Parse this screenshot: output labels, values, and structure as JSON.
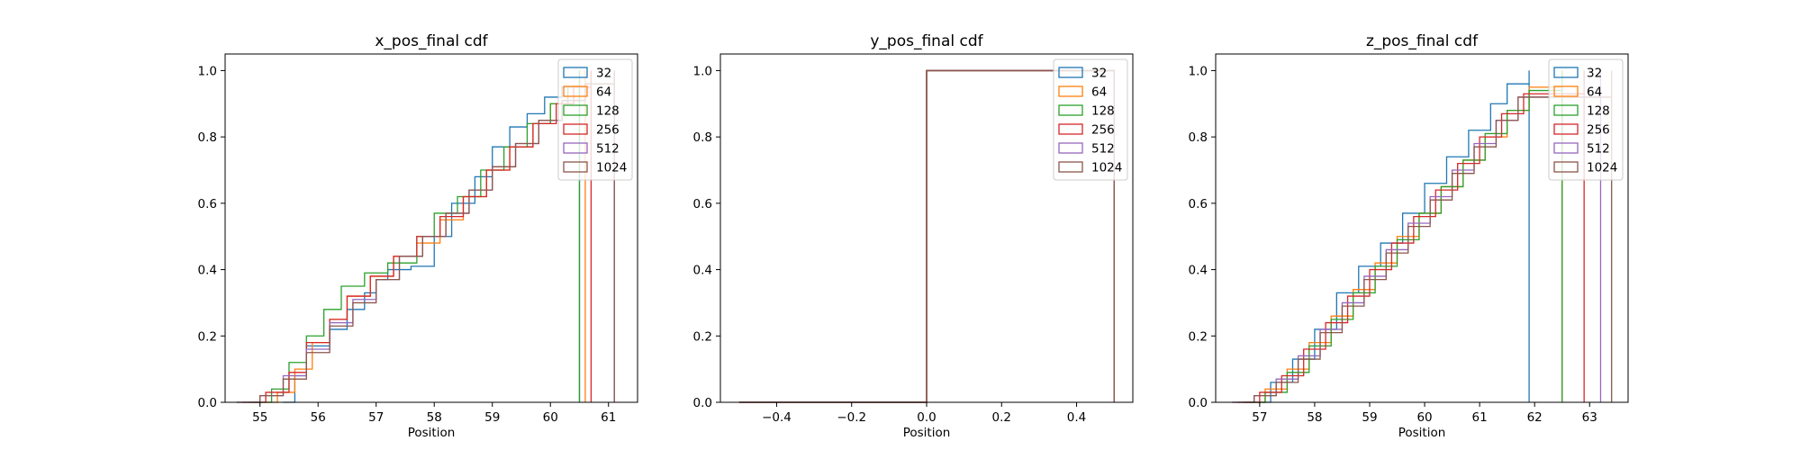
{
  "chart_data": [
    {
      "type": "line",
      "title": "x_pos_final cdf",
      "xlabel": "Position",
      "ylabel": "",
      "xlim": [
        54.4,
        61.5
      ],
      "ylim": [
        0,
        1.05
      ],
      "xticks": [
        55,
        56,
        57,
        58,
        59,
        60,
        61
      ],
      "xtick_labels": [
        "55",
        "56",
        "57",
        "58",
        "59",
        "60",
        "61"
      ],
      "yticks": [
        0.0,
        0.2,
        0.4,
        0.6,
        0.8,
        1.0
      ],
      "ytick_labels": [
        "0.0",
        "0.2",
        "0.4",
        "0.6",
        "0.8",
        "1.0"
      ],
      "legend_position": "top-right",
      "series": [
        {
          "name": "32",
          "color": "#1f77b4",
          "x": [
            55.4,
            55.6,
            55.8,
            56.2,
            56.5,
            56.8,
            57.0,
            57.2,
            57.6,
            58.0,
            58.3,
            58.7,
            59.0,
            59.3,
            59.6,
            59.9,
            60.2,
            60.5
          ],
          "y": [
            0.0,
            0.08,
            0.17,
            0.22,
            0.28,
            0.33,
            0.37,
            0.4,
            0.41,
            0.5,
            0.6,
            0.68,
            0.77,
            0.83,
            0.87,
            0.92,
            0.95,
            1.0
          ]
        },
        {
          "name": "64",
          "color": "#ff7f0e",
          "x": [
            54.9,
            55.3,
            55.6,
            55.9,
            56.2,
            56.5,
            56.9,
            57.3,
            57.7,
            58.1,
            58.5,
            58.9,
            59.3,
            59.7,
            60.0,
            60.3,
            60.6
          ],
          "y": [
            0.0,
            0.03,
            0.1,
            0.18,
            0.25,
            0.32,
            0.38,
            0.44,
            0.48,
            0.55,
            0.62,
            0.7,
            0.77,
            0.84,
            0.9,
            0.95,
            1.0
          ]
        },
        {
          "name": "128",
          "color": "#2ca02c",
          "x": [
            54.8,
            55.2,
            55.5,
            55.8,
            56.1,
            56.4,
            56.8,
            57.2,
            57.7,
            58.0,
            58.4,
            58.8,
            59.2,
            59.6,
            60.0,
            60.3,
            60.5
          ],
          "y": [
            0.0,
            0.04,
            0.12,
            0.2,
            0.28,
            0.35,
            0.39,
            0.42,
            0.5,
            0.57,
            0.62,
            0.7,
            0.77,
            0.84,
            0.9,
            0.95,
            1.0
          ]
        },
        {
          "name": "256",
          "color": "#d62728",
          "x": [
            54.7,
            55.1,
            55.5,
            55.8,
            56.2,
            56.5,
            56.9,
            57.3,
            57.7,
            58.1,
            58.5,
            58.9,
            59.3,
            59.7,
            60.1,
            60.4,
            60.7
          ],
          "y": [
            0.0,
            0.03,
            0.09,
            0.18,
            0.25,
            0.32,
            0.38,
            0.44,
            0.5,
            0.56,
            0.62,
            0.7,
            0.77,
            0.84,
            0.9,
            0.95,
            1.0
          ]
        },
        {
          "name": "512",
          "color": "#9467bd",
          "x": [
            54.6,
            55.0,
            55.4,
            55.8,
            56.2,
            56.6,
            57.0,
            57.4,
            57.8,
            58.2,
            58.6,
            59.0,
            59.4,
            59.8,
            60.2,
            60.6,
            61.1
          ],
          "y": [
            0.0,
            0.02,
            0.08,
            0.16,
            0.24,
            0.31,
            0.37,
            0.44,
            0.5,
            0.57,
            0.64,
            0.71,
            0.78,
            0.85,
            0.91,
            0.96,
            1.0
          ]
        },
        {
          "name": "1024",
          "color": "#8c564b",
          "x": [
            54.6,
            55.0,
            55.4,
            55.8,
            56.2,
            56.6,
            57.0,
            57.4,
            57.8,
            58.2,
            58.6,
            59.0,
            59.4,
            59.8,
            60.2,
            60.6,
            61.1
          ],
          "y": [
            0.0,
            0.02,
            0.07,
            0.15,
            0.23,
            0.3,
            0.37,
            0.44,
            0.5,
            0.57,
            0.64,
            0.71,
            0.78,
            0.85,
            0.91,
            0.96,
            1.0
          ]
        }
      ]
    },
    {
      "type": "line",
      "title": "y_pos_final cdf",
      "xlabel": "Position",
      "ylabel": "",
      "xlim": [
        -0.55,
        0.55
      ],
      "ylim": [
        0,
        1.05
      ],
      "xticks": [
        -0.4,
        -0.2,
        0.0,
        0.2,
        0.4
      ],
      "xtick_labels": [
        "−0.4",
        "−0.2",
        "0.0",
        "0.2",
        "0.4"
      ],
      "yticks": [
        0.0,
        0.2,
        0.4,
        0.6,
        0.8,
        1.0
      ],
      "ytick_labels": [
        "0.0",
        "0.2",
        "0.4",
        "0.6",
        "0.8",
        "1.0"
      ],
      "legend_position": "top-right",
      "series": [
        {
          "name": "32",
          "color": "#1f77b4",
          "x": [
            -0.5,
            0.0,
            0.5
          ],
          "y": [
            0.0,
            1.0,
            1.0
          ]
        },
        {
          "name": "64",
          "color": "#ff7f0e",
          "x": [
            -0.5,
            0.0,
            0.5
          ],
          "y": [
            0.0,
            1.0,
            1.0
          ]
        },
        {
          "name": "128",
          "color": "#2ca02c",
          "x": [
            -0.5,
            0.0,
            0.5
          ],
          "y": [
            0.0,
            1.0,
            1.0
          ]
        },
        {
          "name": "256",
          "color": "#d62728",
          "x": [
            -0.5,
            0.0,
            0.5
          ],
          "y": [
            0.0,
            1.0,
            1.0
          ]
        },
        {
          "name": "512",
          "color": "#9467bd",
          "x": [
            -0.5,
            0.0,
            0.5
          ],
          "y": [
            0.0,
            1.0,
            1.0
          ]
        },
        {
          "name": "1024",
          "color": "#8c564b",
          "x": [
            -0.5,
            0.0,
            0.5
          ],
          "y": [
            0.0,
            1.0,
            1.0
          ]
        }
      ]
    },
    {
      "type": "line",
      "title": "z_pos_final cdf",
      "xlabel": "Position",
      "ylabel": "",
      "xlim": [
        56.2,
        63.7
      ],
      "ylim": [
        0,
        1.05
      ],
      "xticks": [
        57,
        58,
        59,
        60,
        61,
        62,
        63
      ],
      "xtick_labels": [
        "57",
        "58",
        "59",
        "60",
        "61",
        "62",
        "63"
      ],
      "yticks": [
        0.0,
        0.2,
        0.4,
        0.6,
        0.8,
        1.0
      ],
      "ytick_labels": [
        "0.0",
        "0.2",
        "0.4",
        "0.6",
        "0.8",
        "1.0"
      ],
      "legend_position": "top-right",
      "series": [
        {
          "name": "32",
          "color": "#1f77b4",
          "x": [
            56.8,
            57.2,
            57.6,
            58.0,
            58.4,
            58.8,
            59.2,
            59.6,
            60.0,
            60.4,
            60.8,
            61.2,
            61.5,
            61.9
          ],
          "y": [
            0.0,
            0.06,
            0.13,
            0.22,
            0.33,
            0.41,
            0.48,
            0.57,
            0.66,
            0.74,
            0.82,
            0.9,
            0.96,
            1.0
          ]
        },
        {
          "name": "64",
          "color": "#ff7f0e",
          "x": [
            56.7,
            57.1,
            57.5,
            57.9,
            58.3,
            58.7,
            59.1,
            59.5,
            59.9,
            60.3,
            60.7,
            61.1,
            61.5,
            61.9,
            62.5
          ],
          "y": [
            0.0,
            0.04,
            0.1,
            0.18,
            0.26,
            0.34,
            0.42,
            0.5,
            0.57,
            0.65,
            0.73,
            0.8,
            0.88,
            0.95,
            1.0
          ]
        },
        {
          "name": "128",
          "color": "#2ca02c",
          "x": [
            56.7,
            57.1,
            57.5,
            57.9,
            58.3,
            58.7,
            59.1,
            59.5,
            59.9,
            60.3,
            60.7,
            61.1,
            61.5,
            61.9,
            62.5
          ],
          "y": [
            0.0,
            0.03,
            0.09,
            0.17,
            0.25,
            0.33,
            0.41,
            0.49,
            0.57,
            0.65,
            0.73,
            0.81,
            0.88,
            0.94,
            1.0
          ]
        },
        {
          "name": "256",
          "color": "#d62728",
          "x": [
            56.6,
            57.0,
            57.4,
            57.8,
            58.2,
            58.6,
            59.0,
            59.4,
            59.8,
            60.2,
            60.6,
            61.0,
            61.4,
            61.8,
            62.9
          ],
          "y": [
            0.0,
            0.03,
            0.08,
            0.16,
            0.24,
            0.32,
            0.4,
            0.48,
            0.56,
            0.64,
            0.72,
            0.8,
            0.87,
            0.93,
            1.0
          ]
        },
        {
          "name": "512",
          "color": "#9467bd",
          "x": [
            56.5,
            56.9,
            57.3,
            57.7,
            58.1,
            58.5,
            58.9,
            59.3,
            59.7,
            60.1,
            60.5,
            60.9,
            61.3,
            61.7,
            63.2
          ],
          "y": [
            0.0,
            0.02,
            0.07,
            0.14,
            0.22,
            0.3,
            0.38,
            0.46,
            0.54,
            0.62,
            0.7,
            0.78,
            0.85,
            0.92,
            1.0
          ]
        },
        {
          "name": "1024",
          "color": "#8c564b",
          "x": [
            56.5,
            56.9,
            57.3,
            57.7,
            58.1,
            58.5,
            58.9,
            59.3,
            59.7,
            60.1,
            60.5,
            60.9,
            61.3,
            61.7,
            63.4
          ],
          "y": [
            0.0,
            0.02,
            0.06,
            0.13,
            0.21,
            0.29,
            0.37,
            0.45,
            0.53,
            0.61,
            0.69,
            0.77,
            0.85,
            0.92,
            1.0
          ]
        }
      ]
    }
  ]
}
